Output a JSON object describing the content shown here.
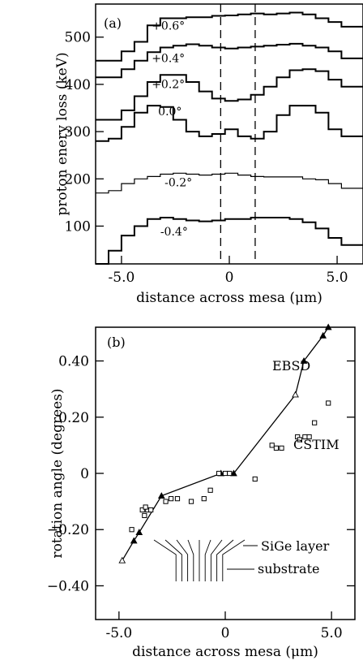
{
  "chart_data": [
    {
      "panel_label": "(a)",
      "type": "line",
      "xlabel": "distance across mesa (μm)",
      "ylabel": "proton enery loss (keV)",
      "xlim": [
        -6.2,
        6.2
      ],
      "ylim": [
        20,
        570
      ],
      "xticks": [
        -5,
        0,
        5
      ],
      "xtick_labels": [
        "-5.0",
        "0",
        "5.0"
      ],
      "yticks": [
        100,
        200,
        300,
        400,
        500
      ],
      "ytick_labels": [
        "100",
        "200",
        "300",
        "400",
        "500"
      ],
      "vlines": [
        -0.4,
        1.2
      ],
      "x": [
        -6.2,
        -5.6,
        -5.0,
        -4.4,
        -3.8,
        -3.2,
        -2.6,
        -2.0,
        -1.4,
        -0.8,
        -0.2,
        0.4,
        1.0,
        1.6,
        2.2,
        2.8,
        3.4,
        4.0,
        4.6,
        5.2,
        5.8,
        6.2
      ],
      "series": [
        {
          "name": "+0.6°",
          "values": [
            450,
            450,
            470,
            490,
            525,
            540,
            540,
            542,
            542,
            545,
            546,
            548,
            550,
            548,
            550,
            552,
            548,
            540,
            532,
            522,
            522,
            522
          ]
        },
        {
          "name": "+0.4°",
          "values": [
            415,
            415,
            432,
            450,
            468,
            478,
            482,
            485,
            482,
            478,
            476,
            478,
            480,
            482,
            484,
            486,
            482,
            478,
            470,
            455,
            455,
            455
          ]
        },
        {
          "name": "+0.2°",
          "values": [
            325,
            325,
            345,
            375,
            405,
            420,
            420,
            405,
            385,
            370,
            365,
            368,
            378,
            395,
            415,
            430,
            432,
            428,
            410,
            395,
            395,
            395
          ]
        },
        {
          "name": "0.0°",
          "values": [
            280,
            285,
            310,
            340,
            355,
            352,
            325,
            300,
            290,
            295,
            305,
            290,
            285,
            300,
            335,
            355,
            355,
            340,
            305,
            290,
            290,
            290
          ]
        },
        {
          "name": "-0.2°",
          "values": [
            170,
            175,
            190,
            200,
            205,
            210,
            212,
            210,
            208,
            210,
            212,
            208,
            205,
            204,
            204,
            204,
            200,
            198,
            190,
            180,
            180,
            180
          ]
        },
        {
          "name": "-0.4°",
          "values": [
            20,
            48,
            80,
            100,
            115,
            118,
            115,
            112,
            110,
            112,
            115,
            115,
            118,
            118,
            118,
            115,
            108,
            95,
            75,
            60,
            60,
            60
          ]
        }
      ]
    },
    {
      "panel_label": "(b)",
      "type": "scatter",
      "xlabel": "distance across mesa (μm)",
      "ylabel": "rotation angle (degrees)",
      "xlim": [
        -6.1,
        6.1
      ],
      "ylim": [
        -0.52,
        0.52
      ],
      "xticks": [
        -5,
        0,
        5
      ],
      "xtick_labels": [
        "-5.0",
        "0",
        "5.0"
      ],
      "yticks": [
        -0.4,
        -0.2,
        0,
        0.2,
        0.4
      ],
      "ytick_labels": [
        "−0.40",
        "−0.20",
        "0",
        "0.20",
        "0.40"
      ],
      "series": [
        {
          "name": "EBSD",
          "marker": "triangle",
          "line": true,
          "x": [
            -4.85,
            -4.3,
            -4.05,
            -3.0,
            -0.2,
            0.4,
            3.3,
            3.7,
            4.6,
            4.85
          ],
          "y": [
            -0.31,
            -0.24,
            -0.21,
            -0.08,
            0.0,
            0.0,
            0.28,
            0.4,
            0.49,
            0.52
          ]
        },
        {
          "name": "CSTIM",
          "marker": "square",
          "line": false,
          "x": [
            -4.4,
            -3.9,
            -3.8,
            -3.65,
            -3.5,
            -3.75,
            -2.8,
            -2.55,
            -2.25,
            -1.6,
            -1.0,
            -0.7,
            -0.3,
            0.0,
            0.2,
            1.4,
            2.2,
            2.4,
            2.65,
            3.4,
            3.5,
            3.75,
            3.95,
            4.2,
            4.85
          ],
          "y": [
            -0.2,
            -0.13,
            -0.15,
            -0.13,
            -0.13,
            -0.12,
            -0.1,
            -0.09,
            -0.09,
            -0.1,
            -0.09,
            -0.06,
            0.0,
            0.0,
            0.0,
            -0.02,
            0.1,
            0.09,
            0.09,
            0.13,
            0.12,
            0.13,
            0.13,
            0.18,
            0.25
          ]
        }
      ],
      "annotations": {
        "layer_label": "SiGe layer",
        "substrate_label": "substrate"
      }
    }
  ]
}
